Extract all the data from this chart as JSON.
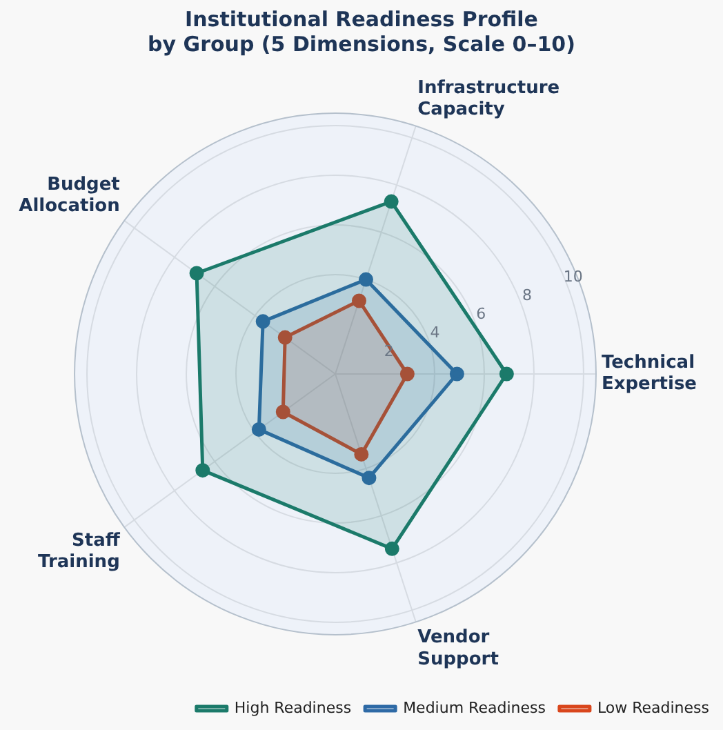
{
  "chart_data": {
    "type": "radar",
    "title": "Institutional Readiness Profile\nby Group (5 Dimensions, Scale 0–10)",
    "categories": [
      "Infrastructure Capacity",
      "Technical Expertise",
      "Vendor Support",
      "Staff Training",
      "Budget Allocation"
    ],
    "series": [
      {
        "name": "High Readiness",
        "color": "#1b7a6a",
        "values": [
          7.3,
          6.9,
          7.4,
          6.6,
          6.9
        ]
      },
      {
        "name": "Medium Readiness",
        "color": "#2e6aa6",
        "values": [
          4.0,
          4.9,
          4.4,
          3.8,
          3.6
        ]
      },
      {
        "name": "Low Readiness",
        "color": "#d9461c",
        "values": [
          3.1,
          2.9,
          3.4,
          2.6,
          2.5
        ]
      }
    ],
    "ylim": [
      0,
      10.5
    ],
    "yticks": [
      2,
      4,
      6,
      8,
      10
    ],
    "grid": true,
    "legend": "bottom right",
    "marker": "circle",
    "line_style": "solid"
  }
}
